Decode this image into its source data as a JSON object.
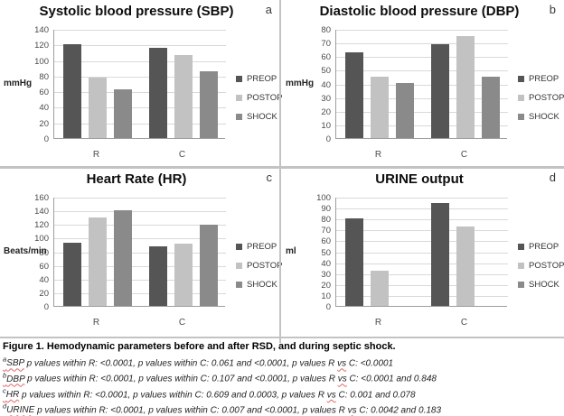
{
  "colors": {
    "preop": "#555555",
    "postop": "#c2c2c2",
    "shock": "#8a8a8a",
    "gridline": "#d9d9d9",
    "axis": "#9e9e9e",
    "divider": "#c3c3c3",
    "squiggle_red": "#e06666"
  },
  "chart_data": [
    {
      "type": "bar",
      "panel_letter": "a",
      "title": "Systolic blood pressure (SBP)",
      "ylabel": "mmHg",
      "categories": [
        "R",
        "C"
      ],
      "series": [
        {
          "name": "PREOP",
          "color": "#555555",
          "values": [
            120,
            116
          ]
        },
        {
          "name": "POSTOP",
          "color": "#c2c2c2",
          "values": [
            78,
            107
          ]
        },
        {
          "name": "SHOCK",
          "color": "#8a8a8a",
          "values": [
            62,
            86
          ]
        }
      ],
      "ylim": [
        0,
        140
      ],
      "ytick_step": 20,
      "grid": true,
      "legend_position": "right"
    },
    {
      "type": "bar",
      "panel_letter": "b",
      "title": "Diastolic blood pressure (DBP)",
      "ylabel": "mmHg",
      "categories": [
        "R",
        "C"
      ],
      "series": [
        {
          "name": "PREOP",
          "color": "#555555",
          "values": [
            63,
            69
          ]
        },
        {
          "name": "POSTOP",
          "color": "#c2c2c2",
          "values": [
            45,
            75
          ]
        },
        {
          "name": "SHOCK",
          "color": "#8a8a8a",
          "values": [
            40,
            45
          ]
        }
      ],
      "ylim": [
        0,
        80
      ],
      "ytick_step": 10,
      "grid": true,
      "legend_position": "right"
    },
    {
      "type": "bar",
      "panel_letter": "c",
      "title": "Heart Rate (HR)",
      "ylabel": "Beats/min",
      "categories": [
        "R",
        "C"
      ],
      "series": [
        {
          "name": "PREOP",
          "color": "#555555",
          "values": [
            93,
            87
          ]
        },
        {
          "name": "POSTOP",
          "color": "#c2c2c2",
          "values": [
            129,
            91
          ]
        },
        {
          "name": "SHOCK",
          "color": "#8a8a8a",
          "values": [
            140,
            119
          ]
        }
      ],
      "ylim": [
        0,
        160
      ],
      "ytick_step": 20,
      "grid": true,
      "legend_position": "right"
    },
    {
      "type": "bar",
      "panel_letter": "d",
      "title": "URINE output",
      "ylabel": "ml",
      "categories": [
        "R",
        "C"
      ],
      "series": [
        {
          "name": "PREOP",
          "color": "#555555",
          "values": [
            80,
            94
          ]
        },
        {
          "name": "POSTOP",
          "color": "#c2c2c2",
          "values": [
            32,
            73
          ]
        },
        {
          "name": "SHOCK",
          "color": "#8a8a8a",
          "values": [
            null,
            null
          ]
        }
      ],
      "ylim": [
        0,
        100
      ],
      "ytick_step": 10,
      "grid": true,
      "legend_position": "right"
    }
  ],
  "caption": {
    "title": "Figure 1. Hemodynamic parameters before and after RSD, and during septic shock.",
    "footnotes": [
      {
        "sup": "a",
        "term": "SBP",
        "body1": " p values within R: <0.0001,  p values within C: 0.061 and <0.0001,  p values R ",
        "vs": "vs",
        "body2": " C: <0.0001"
      },
      {
        "sup": "b",
        "term": "DBP",
        "body1": " p values within R: <0.0001,  p values within C: 0.107 and <0.0001,  p values R ",
        "vs": "vs",
        "body2": " C: <0.0001 and 0.848"
      },
      {
        "sup": "c",
        "term": "HR",
        "body1": " p values within R: <0.0001,  p values within C: 0.609 and 0.0003,  p values R ",
        "vs": "vs",
        "body2": " C: 0.001 and 0.078"
      },
      {
        "sup": "d",
        "term": "URINE",
        "body1": " p values within R: <0.0001,  p values within C: 0.007 and <0.0001,  p values R ",
        "vs": "vs",
        "body2": " C: 0.0042 and 0.183"
      }
    ]
  }
}
